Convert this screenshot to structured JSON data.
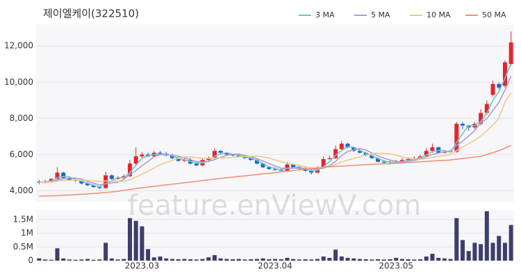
{
  "watermark": "feature.enViewV.com",
  "chart_data": [
    {
      "type": "candlestick",
      "title": "제이엘케이(322510)",
      "legend": "top-right",
      "grid": true,
      "up_color": "#e3262c",
      "down_color": "#1e64c8",
      "ylim": [
        3400,
        13200
      ],
      "yticks": [
        {
          "value": 4000,
          "label": "4,000"
        },
        {
          "value": 6000,
          "label": "6,000"
        },
        {
          "value": 8000,
          "label": "8,000"
        },
        {
          "value": 10000,
          "label": "10,000"
        },
        {
          "value": 12000,
          "label": "12,000"
        }
      ],
      "open": [
        4500,
        4450,
        4500,
        4650,
        5000,
        4700,
        4600,
        4550,
        4400,
        4300,
        4200,
        4150,
        4850,
        4650,
        4700,
        4800,
        5500,
        5900,
        6000,
        5900,
        6100,
        6050,
        5950,
        5800,
        5650,
        5700,
        5500,
        5400,
        5700,
        5800,
        6200,
        6100,
        6000,
        5950,
        5900,
        5800,
        5700,
        5500,
        5300,
        5200,
        5150,
        5100,
        5450,
        5300,
        5200,
        5100,
        5000,
        5250,
        5750,
        5800,
        6300,
        6600,
        6400,
        6200,
        6100,
        5950,
        5800,
        5600,
        5550,
        5600,
        5550,
        5700,
        5750,
        5800,
        5900,
        6200,
        6400,
        6100,
        6200,
        6150,
        7700,
        7600,
        7500,
        7700,
        8300,
        9300,
        9900,
        9800,
        11000
      ],
      "high": [
        4600,
        4600,
        4700,
        5300,
        5050,
        4750,
        4650,
        4600,
        4450,
        4350,
        4250,
        5050,
        4900,
        4800,
        4900,
        5700,
        6400,
        6150,
        6100,
        6200,
        6200,
        6150,
        6050,
        5900,
        5800,
        5800,
        5600,
        5800,
        5900,
        6350,
        6250,
        6150,
        6050,
        6000,
        5950,
        5850,
        5750,
        5550,
        5350,
        5300,
        5250,
        5600,
        5500,
        5400,
        5300,
        5200,
        5350,
        5900,
        5950,
        6500,
        6750,
        6650,
        6450,
        6300,
        6150,
        6000,
        5850,
        5700,
        5700,
        5700,
        5800,
        5850,
        5900,
        6000,
        6350,
        6600,
        6450,
        6250,
        6250,
        7800,
        7800,
        7650,
        7800,
        8500,
        9000,
        10100,
        10000,
        11200,
        12800
      ],
      "low": [
        4350,
        4400,
        4450,
        4600,
        4650,
        4550,
        4500,
        4350,
        4250,
        4150,
        4100,
        4100,
        4600,
        4600,
        4650,
        4750,
        5400,
        5800,
        5850,
        5850,
        6000,
        5900,
        5750,
        5600,
        5600,
        5450,
        5350,
        5350,
        5650,
        5750,
        6050,
        5950,
        5900,
        5850,
        5750,
        5650,
        5450,
        5250,
        5150,
        5100,
        5050,
        5050,
        5250,
        5150,
        5050,
        4900,
        4950,
        5200,
        5700,
        5750,
        6250,
        6350,
        6150,
        6050,
        5900,
        5750,
        5550,
        5450,
        5450,
        5500,
        5500,
        5650,
        5700,
        5750,
        5850,
        6100,
        6050,
        6050,
        6100,
        6100,
        7400,
        7300,
        7400,
        7600,
        8200,
        9200,
        9600,
        9700,
        10900
      ],
      "close": [
        4450,
        4500,
        4650,
        5000,
        4700,
        4600,
        4550,
        4400,
        4300,
        4200,
        4150,
        4850,
        4650,
        4700,
        4800,
        5500,
        5900,
        6000,
        5900,
        6100,
        6050,
        5950,
        5800,
        5650,
        5700,
        5500,
        5400,
        5700,
        5800,
        6200,
        6100,
        6000,
        5950,
        5900,
        5800,
        5700,
        5500,
        5300,
        5200,
        5150,
        5100,
        5450,
        5300,
        5200,
        5100,
        5000,
        5250,
        5750,
        5800,
        6300,
        6600,
        6400,
        6200,
        6100,
        5950,
        5800,
        5600,
        5550,
        5600,
        5550,
        5700,
        5750,
        5800,
        5900,
        6200,
        6400,
        6100,
        6150,
        6150,
        7700,
        7600,
        7500,
        7700,
        8300,
        8800,
        9900,
        9700,
        11100,
        12200
      ],
      "series": [
        {
          "name": "3 MA",
          "color": "#6cc8c8",
          "values": [
            4450,
            4480,
            4530,
            4720,
            4780,
            4770,
            4620,
            4520,
            4420,
            4300,
            4220,
            4400,
            4550,
            4730,
            4720,
            5000,
            5400,
            5800,
            5930,
            6000,
            6020,
            6030,
            5930,
            5800,
            5720,
            5620,
            5530,
            5530,
            5630,
            5900,
            6030,
            6100,
            6020,
            5950,
            5880,
            5800,
            5670,
            5500,
            5330,
            5220,
            5150,
            5230,
            5280,
            5320,
            5200,
            5100,
            5120,
            5330,
            5600,
            5950,
            6230,
            6430,
            6400,
            6230,
            6080,
            5950,
            5780,
            5650,
            5580,
            5570,
            5620,
            5670,
            5750,
            5820,
            5970,
            6170,
            6230,
            6220,
            6130,
            6670,
            7150,
            7600,
            7600,
            7830,
            8270,
            9000,
            9470,
            10230,
            11000
          ]
        },
        {
          "name": "5 MA",
          "color": "#b39bd0",
          "values": [
            4450,
            4470,
            4500,
            4600,
            4660,
            4690,
            4700,
            4650,
            4510,
            4410,
            4320,
            4390,
            4430,
            4470,
            4630,
            4900,
            5110,
            5380,
            5620,
            5880,
            5990,
            6000,
            5960,
            5910,
            5830,
            5720,
            5610,
            5590,
            5620,
            5720,
            5840,
            5960,
            6010,
            6030,
            5950,
            5870,
            5770,
            5640,
            5500,
            5370,
            5250,
            5240,
            5240,
            5240,
            5230,
            5210,
            5170,
            5260,
            5380,
            5620,
            5940,
            6170,
            6260,
            6320,
            6250,
            6090,
            5930,
            5800,
            5700,
            5620,
            5600,
            5630,
            5680,
            5740,
            5870,
            6010,
            6080,
            6150,
            6200,
            6500,
            6740,
            7020,
            7330,
            7760,
            7980,
            8440,
            8880,
            9560,
            10340
          ]
        },
        {
          "name": "10 MA",
          "color": "#f0c88e",
          "values": [
            4450,
            4450,
            4480,
            4530,
            4560,
            4580,
            4590,
            4580,
            4570,
            4540,
            4510,
            4540,
            4540,
            4510,
            4520,
            4610,
            4750,
            4910,
            5070,
            5260,
            5450,
            5560,
            5680,
            5780,
            5870,
            5870,
            5830,
            5800,
            5790,
            5800,
            5810,
            5820,
            5840,
            5870,
            5880,
            5900,
            5910,
            5870,
            5810,
            5700,
            5600,
            5530,
            5460,
            5390,
            5330,
            5260,
            5240,
            5280,
            5330,
            5440,
            5590,
            5690,
            5780,
            5870,
            5970,
            6050,
            6080,
            6060,
            6040,
            5960,
            5870,
            5800,
            5760,
            5740,
            5770,
            5840,
            5890,
            5950,
            6000,
            6220,
            6420,
            6600,
            6790,
            7030,
            7290,
            7640,
            8000,
            8900,
            9400
          ]
        },
        {
          "name": "50 MA",
          "color": "#f2917a",
          "values": [
            3700,
            3710,
            3720,
            3730,
            3750,
            3760,
            3780,
            3800,
            3820,
            3850,
            3870,
            3900,
            3930,
            3970,
            4020,
            4070,
            4120,
            4160,
            4200,
            4240,
            4280,
            4320,
            4360,
            4400,
            4440,
            4480,
            4520,
            4560,
            4600,
            4640,
            4680,
            4720,
            4750,
            4790,
            4820,
            4860,
            4890,
            4930,
            4960,
            5000,
            5040,
            5080,
            5110,
            5150,
            5190,
            5230,
            5260,
            5300,
            5320,
            5340,
            5360,
            5380,
            5400,
            5420,
            5440,
            5460,
            5470,
            5490,
            5500,
            5520,
            5540,
            5560,
            5580,
            5600,
            5620,
            5640,
            5660,
            5680,
            5700,
            5740,
            5780,
            5820,
            5860,
            5900,
            6000,
            6100,
            6220,
            6350,
            6500
          ]
        }
      ]
    },
    {
      "type": "bar",
      "color": "#3e3d6b",
      "grid": true,
      "ylim": [
        0,
        1850000
      ],
      "yticks": [
        {
          "value": 0,
          "label": "0"
        },
        {
          "value": 500000,
          "label": "0.5M"
        },
        {
          "value": 1000000,
          "label": "1M"
        },
        {
          "value": 1500000,
          "label": "1.5M"
        }
      ],
      "categories": [
        null,
        null,
        null,
        null,
        null,
        null,
        null,
        null,
        null,
        null,
        null,
        null,
        null,
        null,
        null,
        null,
        null,
        "2023.03",
        null,
        null,
        null,
        null,
        null,
        null,
        null,
        null,
        null,
        null,
        null,
        null,
        null,
        null,
        null,
        null,
        null,
        null,
        null,
        null,
        null,
        "2023.04",
        null,
        null,
        null,
        null,
        null,
        null,
        null,
        null,
        null,
        null,
        null,
        null,
        null,
        null,
        null,
        null,
        null,
        null,
        null,
        "2023.05",
        null,
        null,
        null,
        null,
        null,
        null,
        null,
        null,
        null,
        null,
        null,
        null,
        null,
        null,
        null,
        null,
        null,
        null,
        null
      ],
      "values": [
        80000,
        40000,
        30000,
        450000,
        80000,
        40000,
        30000,
        40000,
        60000,
        30000,
        40000,
        650000,
        80000,
        40000,
        60000,
        1550000,
        1450000,
        1250000,
        420000,
        120000,
        150000,
        80000,
        60000,
        50000,
        60000,
        50000,
        40000,
        60000,
        120000,
        200000,
        80000,
        60000,
        50000,
        60000,
        40000,
        50000,
        60000,
        80000,
        50000,
        60000,
        50000,
        100000,
        60000,
        40000,
        50000,
        40000,
        60000,
        150000,
        100000,
        400000,
        150000,
        100000,
        80000,
        60000,
        50000,
        40000,
        50000,
        40000,
        50000,
        100000,
        60000,
        50000,
        40000,
        50000,
        150000,
        250000,
        100000,
        80000,
        60000,
        1550000,
        750000,
        350000,
        650000,
        600000,
        1800000,
        650000,
        900000,
        650000,
        1300000
      ]
    }
  ]
}
